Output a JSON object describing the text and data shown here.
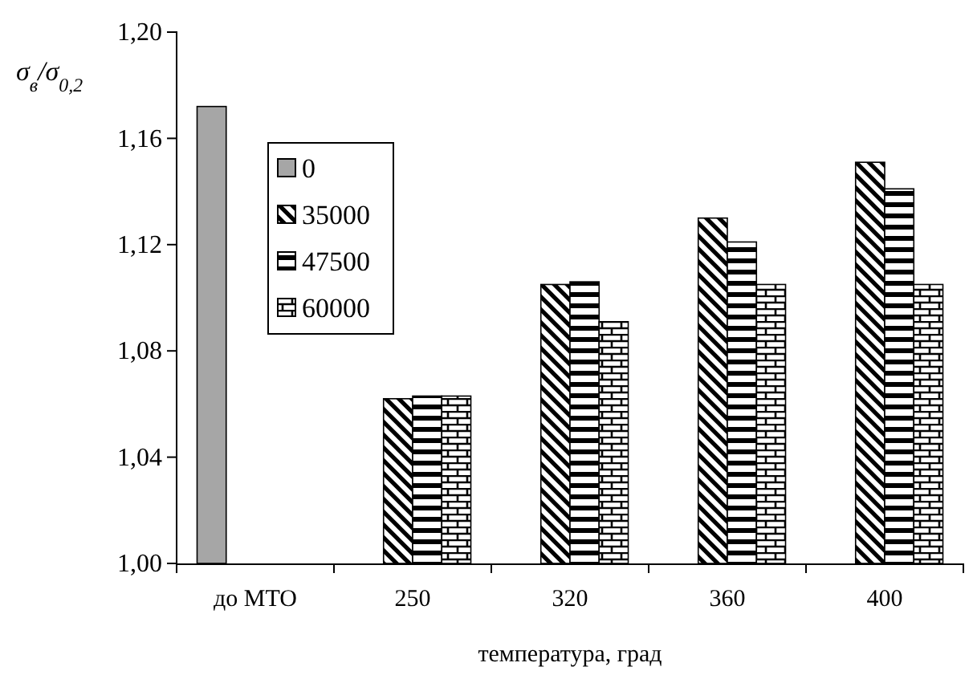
{
  "chart_data": {
    "type": "bar",
    "xlabel": "температура, град",
    "ylabel": "σ$_{в}$/σ$_{0,2}$",
    "categories": [
      "до МТО",
      "250",
      "320",
      "360",
      "400"
    ],
    "series": [
      {
        "name": "0",
        "color": "#a6a6a6",
        "values": [
          1.172,
          null,
          null,
          null,
          null
        ]
      },
      {
        "name": "35000",
        "color": "#000000",
        "values": [
          null,
          1.062,
          1.105,
          1.13,
          1.151
        ]
      },
      {
        "name": "47500",
        "color": "#000000",
        "values": [
          null,
          1.063,
          1.106,
          1.121,
          1.141
        ]
      },
      {
        "name": "60000",
        "color": "#000000",
        "values": [
          null,
          1.063,
          1.091,
          1.105,
          1.105
        ]
      }
    ],
    "ylim": [
      1.0,
      1.2
    ],
    "yticks": [
      {
        "value": 1.0,
        "label": "1,00"
      },
      {
        "value": 1.04,
        "label": "1,04"
      },
      {
        "value": 1.08,
        "label": "1,08"
      },
      {
        "value": 1.12,
        "label": "1,12"
      },
      {
        "value": 1.16,
        "label": "1,16"
      },
      {
        "value": 1.2,
        "label": "1,20"
      }
    ],
    "grid": false,
    "legend": "top left"
  }
}
